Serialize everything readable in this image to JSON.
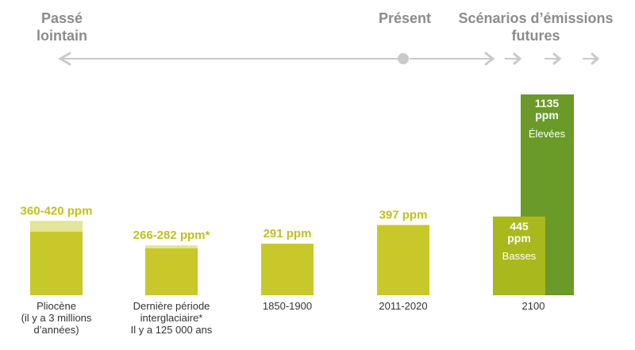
{
  "timeline": {
    "past_label": [
      "Passé",
      "lointain"
    ],
    "present_label": "Présent",
    "future_label": [
      "Scénarios d’émissions",
      "futures"
    ]
  },
  "chart_data": {
    "type": "bar",
    "colors": {
      "bar": "#c8c82a",
      "bar_range": "#e4e49a",
      "low": "#a9b81c",
      "high": "#6a9a28",
      "label": "#c0c020",
      "timeline": "#c9c9c9"
    },
    "categories": [
      {
        "label": [
          "Pliocène",
          "(il y a 3 millions",
          "d’années)"
        ],
        "value": "360-420 ppm",
        "range": [
          360,
          420
        ]
      },
      {
        "label": [
          "Dernière période",
          "interglaciaire*",
          "Il y a 125 000 ans"
        ],
        "value": "266-282 ppm*",
        "range": [
          266,
          282
        ]
      },
      {
        "label": [
          "1850-1900"
        ],
        "value": "291 ppm",
        "range": [
          291,
          291
        ]
      },
      {
        "label": [
          "2011-2020"
        ],
        "value": "397 ppm",
        "range": [
          397,
          397
        ]
      }
    ],
    "scenarios": {
      "label": "2100",
      "low": {
        "value": 445,
        "unit": "ppm",
        "name": "Basses"
      },
      "high": {
        "value": 1135,
        "unit": "ppm",
        "name": "Élevées"
      }
    },
    "ylim": [
      0,
      1135
    ]
  }
}
